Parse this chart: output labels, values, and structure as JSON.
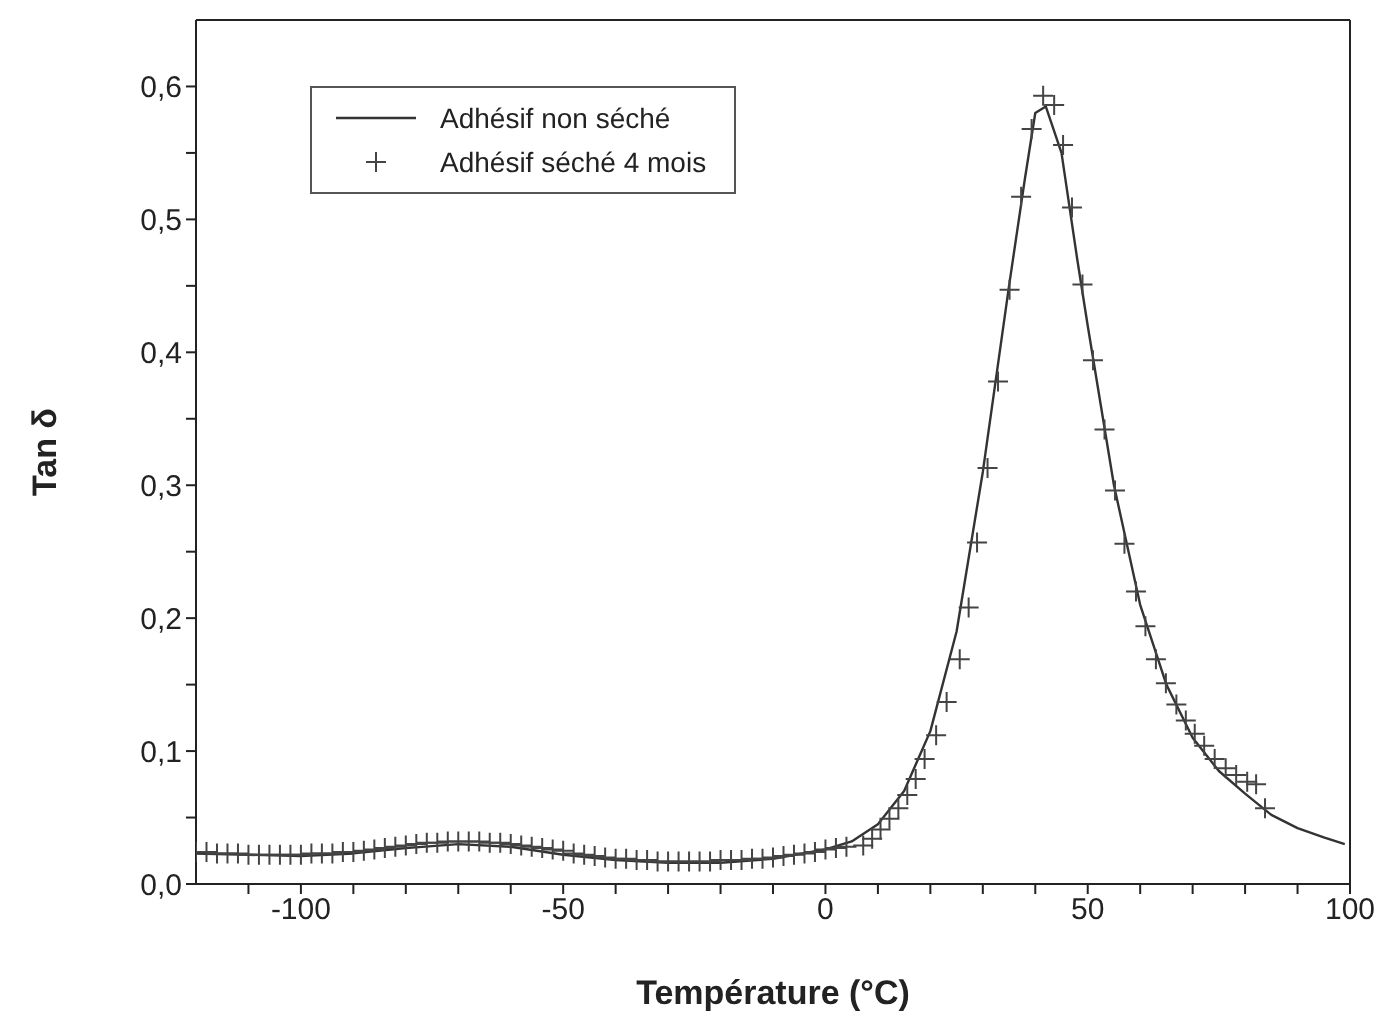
{
  "chart_data": {
    "type": "line",
    "xlabel": "Température (°C)",
    "ylabel": "Tan δ",
    "xlim": [
      -120,
      100
    ],
    "xticks": [
      {
        "value": -110,
        "label": null
      },
      -100,
      {
        "value": -90,
        "label": null
      },
      {
        "value": -80,
        "label": null
      },
      {
        "value": -70,
        "label": null
      },
      {
        "value": -60,
        "label": null
      },
      -50,
      {
        "value": -40,
        "label": null
      },
      {
        "value": -30,
        "label": null
      },
      {
        "value": -20,
        "label": null
      },
      {
        "value": -10,
        "label": null
      },
      0,
      {
        "value": 10,
        "label": null
      },
      {
        "value": 20,
        "label": null
      },
      {
        "value": 30,
        "label": null
      },
      {
        "value": 40,
        "label": null
      },
      50,
      {
        "value": 60,
        "label": null
      },
      {
        "value": 70,
        "label": null
      },
      {
        "value": 80,
        "label": null
      },
      {
        "value": 90,
        "label": null
      },
      100
    ],
    "ylim": [
      0,
      0.65
    ],
    "yticks": [
      {
        "value": 0,
        "label": "0,0"
      },
      {
        "value": 0.05,
        "label": null
      },
      {
        "value": 0.1,
        "label": "0,1"
      },
      {
        "value": 0.15,
        "label": null
      },
      {
        "value": 0.2,
        "label": "0,2"
      },
      {
        "value": 0.25,
        "label": null
      },
      {
        "value": 0.3,
        "label": "0,3"
      },
      {
        "value": 0.35,
        "label": null
      },
      {
        "value": 0.4,
        "label": "0,4"
      },
      {
        "value": 0.45,
        "label": null
      },
      {
        "value": 0.5,
        "label": "0,5"
      },
      {
        "value": 0.55,
        "label": null
      },
      {
        "value": 0.6,
        "label": "0,6"
      }
    ],
    "legend": "top left",
    "series": [
      {
        "name": "Adhésif non séché",
        "color": "#333333",
        "marker": "none",
        "line_style": "solid",
        "x": [
          -120,
          -110,
          -100,
          -90,
          -80,
          -70,
          -60,
          -50,
          -40,
          -30,
          -25,
          -20,
          -10,
          0,
          5,
          10,
          15,
          20,
          25,
          30,
          35,
          38,
          40,
          42,
          45,
          48,
          50,
          55,
          60,
          65,
          70,
          75,
          80,
          85,
          90,
          95,
          99
        ],
        "values": [
          0.023,
          0.022,
          0.021,
          0.023,
          0.027,
          0.03,
          0.028,
          0.022,
          0.018,
          0.016,
          0.016,
          0.016,
          0.019,
          0.026,
          0.032,
          0.045,
          0.07,
          0.115,
          0.19,
          0.31,
          0.45,
          0.53,
          0.58,
          0.585,
          0.55,
          0.47,
          0.42,
          0.3,
          0.21,
          0.15,
          0.11,
          0.085,
          0.068,
          0.052,
          0.042,
          0.035,
          0.03
        ]
      },
      {
        "name": "Adhésif séché 4 mois",
        "type": "scatter",
        "color": "#444444",
        "marker": "cross",
        "x": [
          -120,
          -118,
          -116,
          -114,
          -112,
          -110,
          -108,
          -106,
          -104,
          -102,
          -100,
          -98,
          -96,
          -94,
          -92,
          -90,
          -88,
          -86,
          -84,
          -82,
          -80,
          -78,
          -76,
          -74,
          -72,
          -70,
          -68,
          -66,
          -64,
          -62,
          -60,
          -58,
          -56,
          -54,
          -52,
          -50,
          -48,
          -46,
          -44,
          -42,
          -40,
          -38,
          -36,
          -34,
          -32,
          -30,
          -28,
          -26,
          -24,
          -22,
          -20,
          -18,
          -16,
          -14,
          -12,
          -10,
          -8,
          -6,
          -4,
          -2,
          0,
          2,
          4,
          7.2,
          8.9,
          10.5,
          12.2,
          13.9,
          15.6,
          17.2,
          18.9,
          21.1,
          23.1,
          25.6,
          27.3,
          28.9,
          30.9,
          32.9,
          35.1,
          37.3,
          39.3,
          41.5,
          43.6,
          45.3,
          47,
          49,
          51,
          53.2,
          55.2,
          57,
          59.2,
          61,
          63,
          64.9,
          66.9,
          68.7,
          70.4,
          72.2,
          74.2,
          76.3,
          78.3,
          80.4,
          82.1,
          83.8
        ],
        "values": [
          0.024,
          0.024,
          0.023,
          0.023,
          0.023,
          0.022,
          0.022,
          0.022,
          0.022,
          0.022,
          0.022,
          0.023,
          0.023,
          0.023,
          0.024,
          0.024,
          0.025,
          0.026,
          0.027,
          0.028,
          0.029,
          0.03,
          0.031,
          0.031,
          0.032,
          0.032,
          0.032,
          0.032,
          0.031,
          0.031,
          0.03,
          0.029,
          0.028,
          0.027,
          0.026,
          0.025,
          0.023,
          0.022,
          0.021,
          0.02,
          0.019,
          0.019,
          0.018,
          0.018,
          0.017,
          0.017,
          0.017,
          0.017,
          0.017,
          0.017,
          0.018,
          0.018,
          0.018,
          0.019,
          0.019,
          0.02,
          0.021,
          0.022,
          0.023,
          0.024,
          0.026,
          0.027,
          0.028,
          0.029,
          0.034,
          0.041,
          0.049,
          0.057,
          0.067,
          0.079,
          0.094,
          0.112,
          0.137,
          0.169,
          0.208,
          0.257,
          0.313,
          0.378,
          0.447,
          0.517,
          0.568,
          0.593,
          0.586,
          0.556,
          0.509,
          0.451,
          0.394,
          0.342,
          0.296,
          0.256,
          0.22,
          0.194,
          0.169,
          0.151,
          0.135,
          0.123,
          0.113,
          0.104,
          0.094,
          0.087,
          0.082,
          0.077,
          0.075,
          0.057
        ]
      }
    ]
  }
}
